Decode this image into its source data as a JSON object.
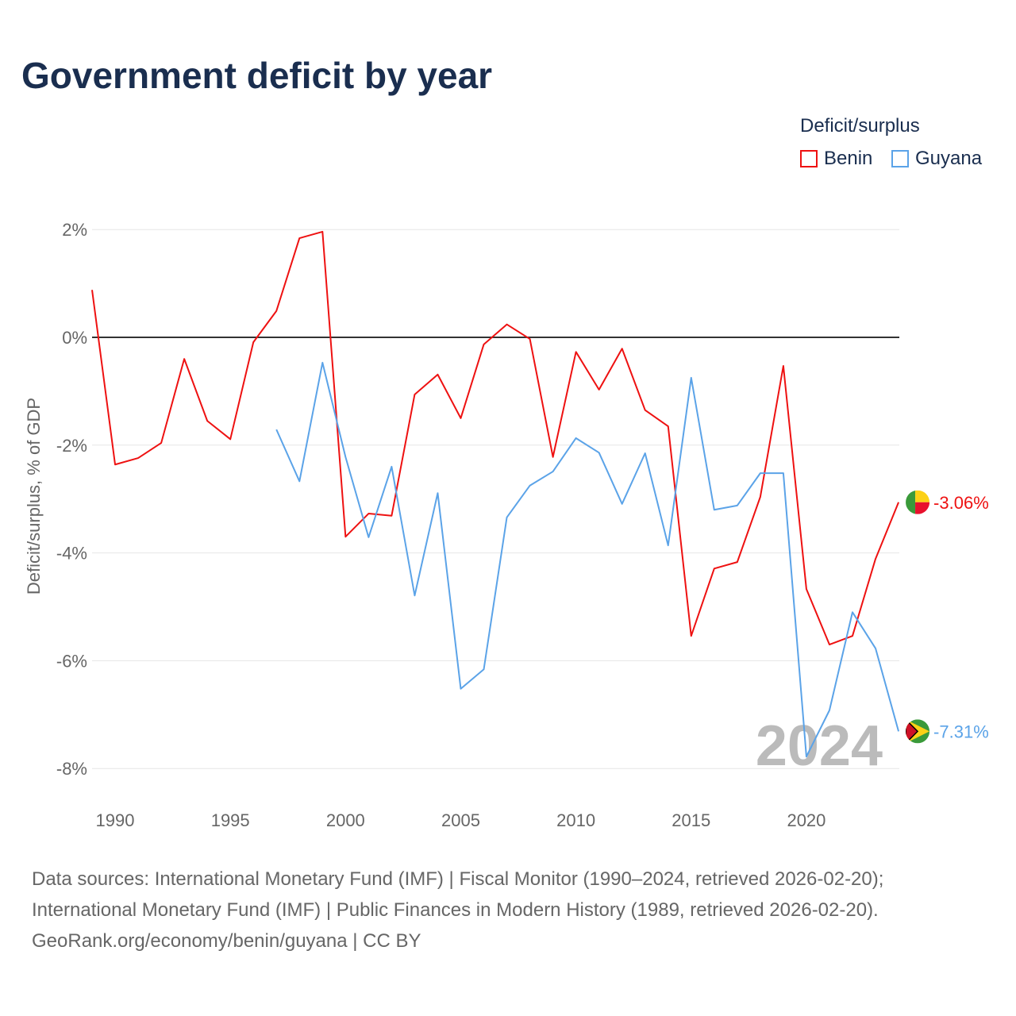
{
  "chart_data": {
    "type": "line",
    "title": "Government deficit by year",
    "ylabel": "Deficit/surplus, % of GDP",
    "xlabel": "",
    "ylim": [
      -8.5,
      2.5
    ],
    "xlim": [
      1989,
      2024
    ],
    "yticks": [
      2,
      0,
      -2,
      -4,
      -6,
      -8
    ],
    "ytick_labels": [
      "2%",
      "0%",
      "-2%",
      "-4%",
      "-6%",
      "-8%"
    ],
    "xticks": [
      1990,
      1995,
      2000,
      2005,
      2010,
      2015,
      2020
    ],
    "xtick_labels": [
      "1990",
      "1995",
      "2000",
      "2005",
      "2010",
      "2015",
      "2020"
    ],
    "legend_title": "Deficit/surplus",
    "legend_position": "top-right",
    "year_watermark": "2024",
    "series": [
      {
        "name": "Benin",
        "color": "#ee1111",
        "end_label": "-3.06%",
        "x": [
          1989,
          1990,
          1991,
          1992,
          1993,
          1994,
          1995,
          1996,
          1997,
          1998,
          1999,
          2000,
          2001,
          2002,
          2003,
          2004,
          2005,
          2006,
          2007,
          2008,
          2009,
          2010,
          2011,
          2012,
          2013,
          2014,
          2015,
          2016,
          2017,
          2018,
          2019,
          2020,
          2021,
          2022,
          2023,
          2024
        ],
        "values": [
          0.88,
          -2.36,
          -2.24,
          -1.96,
          -0.4,
          -1.55,
          -1.89,
          -0.09,
          0.49,
          1.84,
          1.96,
          -3.7,
          -3.27,
          -3.31,
          -1.06,
          -0.69,
          -1.5,
          -0.13,
          0.24,
          -0.03,
          -2.22,
          -0.27,
          -0.97,
          -0.21,
          -1.35,
          -1.65,
          -5.54,
          -4.29,
          -4.17,
          -2.96,
          -0.53,
          -4.67,
          -5.7,
          -5.54,
          -4.11,
          -3.06
        ]
      },
      {
        "name": "Guyana",
        "color": "#5ba3e8",
        "end_label": "-7.31%",
        "x": [
          1997,
          1998,
          1999,
          2000,
          2001,
          2002,
          2003,
          2004,
          2005,
          2006,
          2007,
          2008,
          2009,
          2010,
          2011,
          2012,
          2013,
          2014,
          2015,
          2016,
          2017,
          2018,
          2019,
          2020,
          2021,
          2022,
          2023,
          2024
        ],
        "values": [
          -1.71,
          -2.67,
          -0.47,
          -2.22,
          -3.71,
          -2.4,
          -4.79,
          -2.89,
          -6.52,
          -6.16,
          -3.34,
          -2.75,
          -2.49,
          -1.87,
          -2.14,
          -3.09,
          -2.15,
          -3.86,
          -0.75,
          -3.2,
          -3.12,
          -2.52,
          -2.52,
          -7.78,
          -6.92,
          -5.1,
          -5.77,
          -7.31
        ]
      }
    ]
  },
  "sources": [
    "Data sources: International Monetary Fund (IMF) | Fiscal Monitor (1990–2024, retrieved 2026-02-20);",
    "International Monetary Fund (IMF) | Public Finances in Modern History (1989, retrieved 2026-02-20).",
    "GeoRank.org/economy/benin/guyana | CC BY"
  ]
}
